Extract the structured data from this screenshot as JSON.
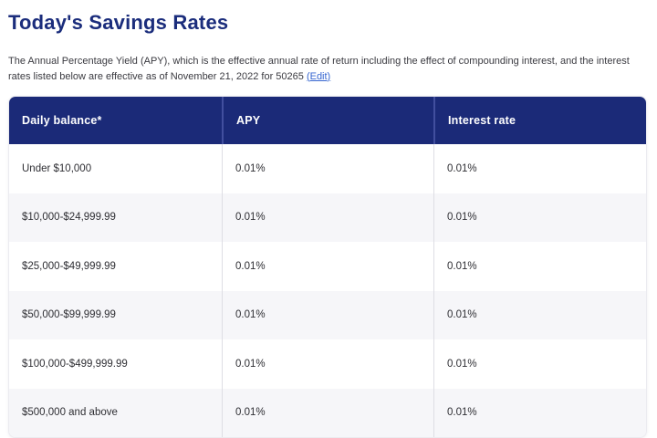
{
  "page": {
    "title": "Today's Savings Rates",
    "description_text": "The Annual Percentage Yield (APY), which is the effective annual rate of return including the effect of compounding interest, and the interest rates listed below are effective as of November 21, 2022 for 50265 ",
    "edit_link_label": "(Edit)"
  },
  "table": {
    "columns": [
      "Daily balance*",
      "APY",
      "Interest rate"
    ],
    "rows": [
      [
        "Under $10,000",
        "0.01%",
        "0.01%"
      ],
      [
        "$10,000-$24,999.99",
        "0.01%",
        "0.01%"
      ],
      [
        "$25,000-$49,999.99",
        "0.01%",
        "0.01%"
      ],
      [
        "$50,000-$99,999.99",
        "0.01%",
        "0.01%"
      ],
      [
        "$100,000-$499,999.99",
        "0.01%",
        "0.01%"
      ],
      [
        "$500,000 and above",
        "0.01%",
        "0.01%"
      ]
    ]
  },
  "colors": {
    "header_navy": "#1b2a78",
    "title_navy": "#1b2d7c",
    "link_blue": "#3565d0",
    "stripe_gray": "#f6f6f9",
    "body_divider": "#dedee4",
    "header_divider": "#424f9e"
  }
}
